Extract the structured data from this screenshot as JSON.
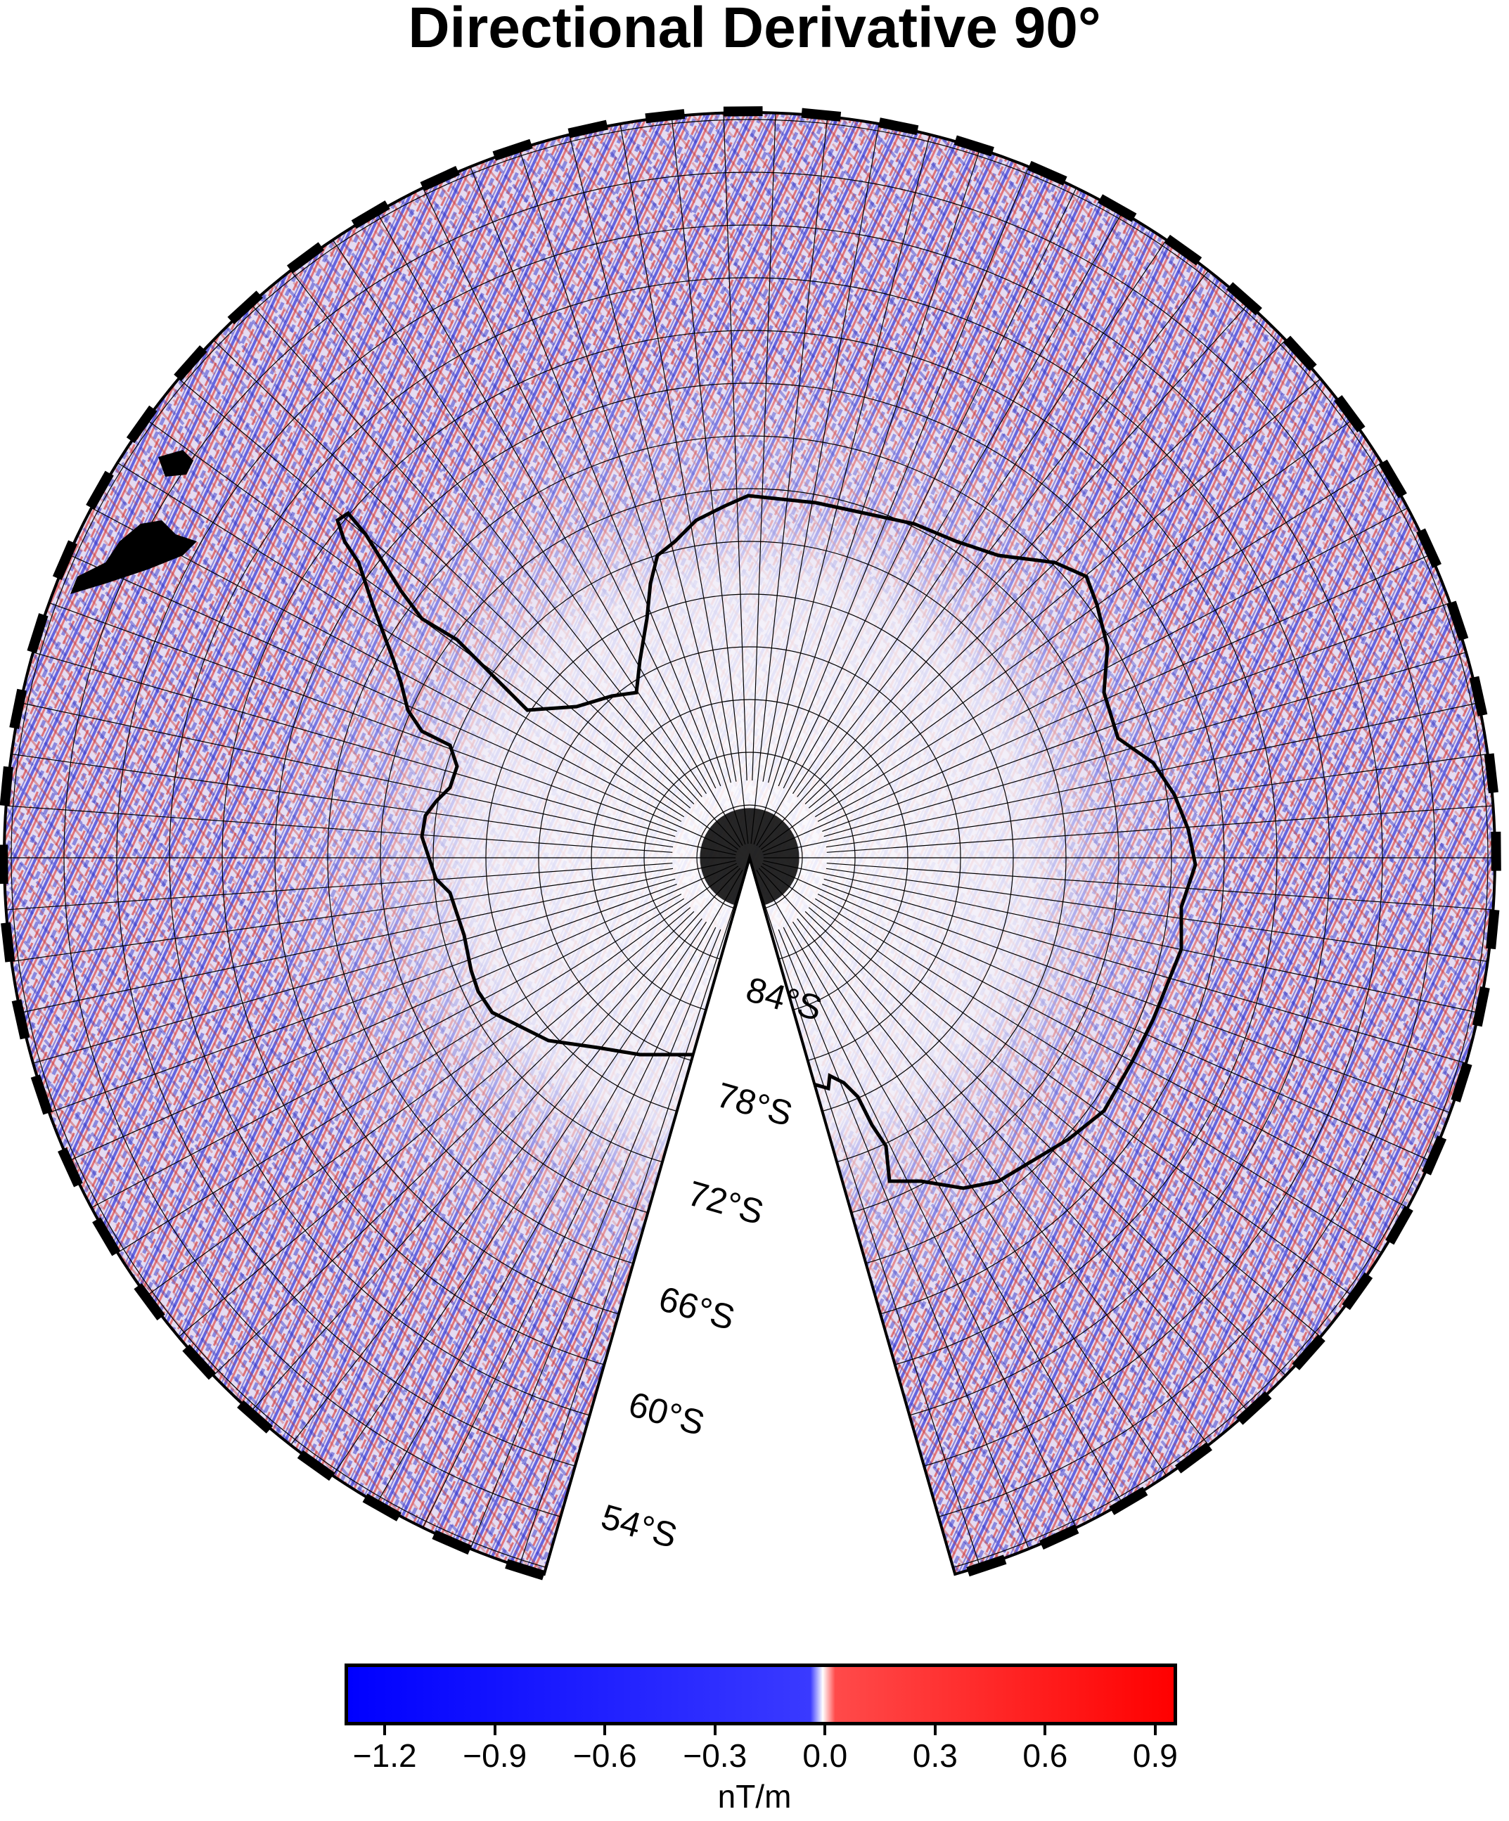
{
  "title": "Directional Derivative 90°",
  "map": {
    "projection": "polar stereographic (south pole), sector",
    "background_pattern": "directional-derivative anomaly texture",
    "coastline_color": "#000000",
    "graticule_color": "#000000",
    "latitude_labels": [
      "84°S",
      "78°S",
      "72°S",
      "66°S",
      "60°S",
      "54°S"
    ],
    "latitude_values": [
      -84,
      -78,
      -72,
      -66,
      -60,
      -54
    ]
  },
  "colorbar": {
    "colors": {
      "min": "#0000ff",
      "mid": "#ffffff",
      "max": "#ff0000"
    },
    "range": [
      -1.3,
      0.95
    ],
    "tick_values": [
      -1.2,
      -0.9,
      -0.6,
      -0.3,
      0.0,
      0.3,
      0.6,
      0.9
    ],
    "tick_labels": [
      "−1.2",
      "−0.9",
      "−0.6",
      "−0.3",
      "0.0",
      "0.3",
      "0.6",
      "0.9"
    ],
    "unit": "nT/m"
  }
}
